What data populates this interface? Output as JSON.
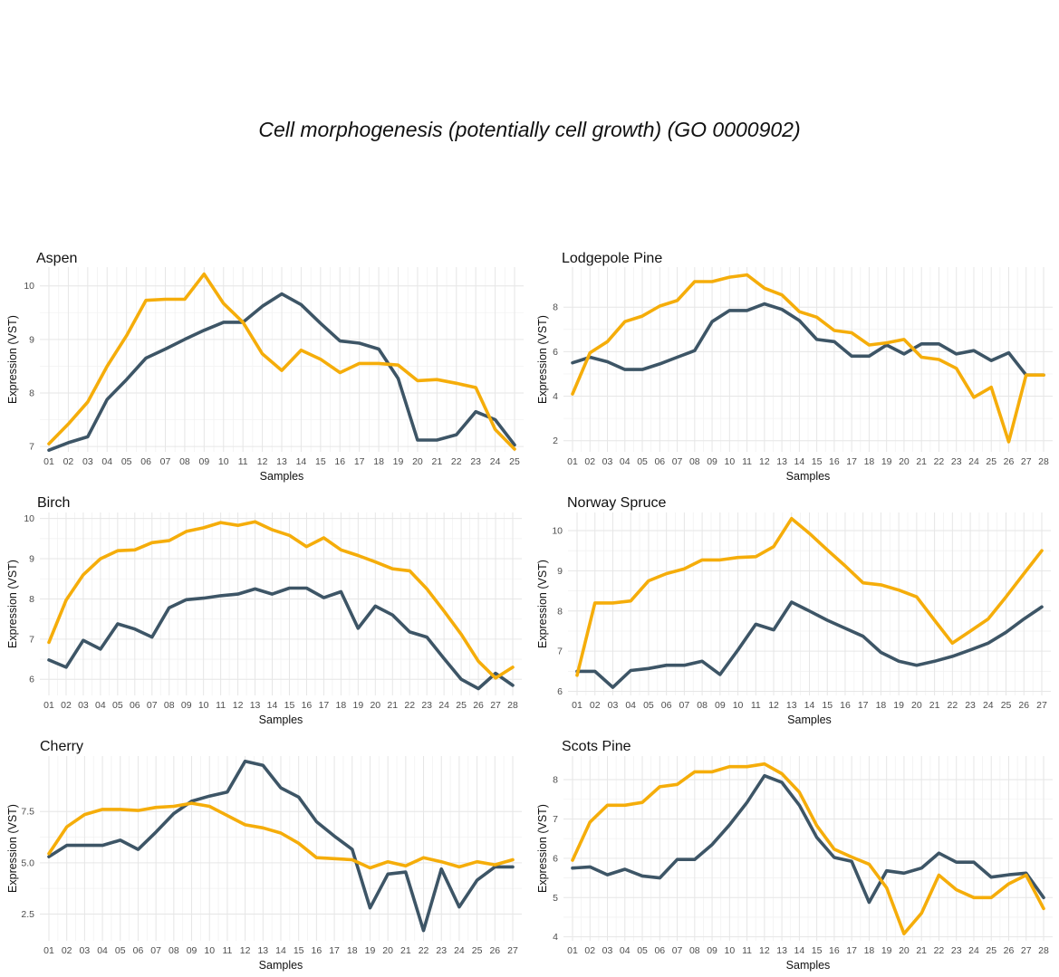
{
  "figure": {
    "title": "Cell morphogenesis (potentially cell growth) (GO 0000902)",
    "colors": {
      "series_dark": "#3d5566",
      "series_gold": "#f5ad0a"
    }
  },
  "chart_data": [
    {
      "type": "line",
      "title": "Aspen",
      "xlabel": "Samples",
      "ylabel": "Expression (VST)",
      "categories": [
        "01",
        "02",
        "03",
        "04",
        "05",
        "06",
        "07",
        "08",
        "09",
        "10",
        "11",
        "12",
        "13",
        "14",
        "15",
        "16",
        "17",
        "18",
        "19",
        "20",
        "21",
        "22",
        "23",
        "24",
        "25"
      ],
      "ylim": [
        6.9,
        10.35
      ],
      "yticks": [
        7,
        8,
        9,
        10
      ],
      "grid": true,
      "series": [
        {
          "color": "#3d5566",
          "values": [
            6.93,
            7.07,
            7.18,
            7.88,
            8.25,
            8.65,
            8.82,
            9.0,
            9.17,
            9.32,
            9.32,
            9.62,
            9.85,
            9.65,
            9.3,
            8.97,
            8.93,
            8.82,
            8.27,
            7.12,
            7.12,
            7.22,
            7.65,
            7.5,
            7.03
          ]
        },
        {
          "color": "#f5ad0a",
          "values": [
            7.05,
            7.42,
            7.83,
            8.5,
            9.07,
            9.73,
            9.75,
            9.75,
            10.22,
            9.67,
            9.32,
            8.73,
            8.42,
            8.8,
            8.63,
            8.38,
            8.55,
            8.55,
            8.52,
            8.23,
            8.25,
            8.18,
            8.1,
            7.32,
            6.95
          ]
        }
      ]
    },
    {
      "type": "line",
      "title": "Lodgepole Pine",
      "xlabel": "Samples",
      "ylabel": "Expression (VST)",
      "categories": [
        "01",
        "02",
        "03",
        "04",
        "05",
        "06",
        "07",
        "08",
        "09",
        "10",
        "11",
        "12",
        "13",
        "14",
        "15",
        "16",
        "17",
        "18",
        "19",
        "20",
        "21",
        "22",
        "23",
        "24",
        "25",
        "26",
        "27",
        "28"
      ],
      "ylim": [
        1.5,
        9.8
      ],
      "yticks": [
        2,
        4,
        6,
        8
      ],
      "grid": true,
      "series": [
        {
          "color": "#3d5566",
          "values": [
            5.5,
            5.75,
            5.55,
            5.2,
            5.2,
            5.45,
            5.75,
            6.05,
            7.35,
            7.85,
            7.85,
            8.15,
            7.9,
            7.4,
            6.55,
            6.45,
            5.8,
            5.8,
            6.3,
            5.9,
            6.35,
            6.35,
            5.9,
            6.05,
            5.6,
            5.95,
            4.95,
            4.95
          ]
        },
        {
          "color": "#f5ad0a",
          "values": [
            4.1,
            5.95,
            6.45,
            7.35,
            7.6,
            8.05,
            8.3,
            9.15,
            9.15,
            9.35,
            9.45,
            8.85,
            8.55,
            7.8,
            7.55,
            6.95,
            6.85,
            6.3,
            6.4,
            6.55,
            5.75,
            5.65,
            5.25,
            3.95,
            4.4,
            1.95,
            4.95,
            4.95
          ]
        }
      ]
    },
    {
      "type": "line",
      "title": "Birch",
      "xlabel": "Samples",
      "ylabel": "Expression (VST)",
      "categories": [
        "01",
        "02",
        "03",
        "04",
        "05",
        "06",
        "07",
        "08",
        "09",
        "10",
        "11",
        "12",
        "13",
        "14",
        "15",
        "16",
        "17",
        "18",
        "19",
        "20",
        "21",
        "22",
        "23",
        "24",
        "25",
        "26",
        "27",
        "28"
      ],
      "ylim": [
        5.6,
        10.15
      ],
      "yticks": [
        6,
        7,
        8,
        9,
        10
      ],
      "grid": true,
      "series": [
        {
          "color": "#3d5566",
          "values": [
            6.48,
            6.3,
            6.97,
            6.75,
            7.38,
            7.25,
            7.05,
            7.78,
            7.98,
            8.02,
            8.08,
            8.12,
            8.25,
            8.12,
            8.27,
            8.27,
            8.03,
            8.18,
            7.27,
            7.82,
            7.6,
            7.18,
            7.05,
            6.52,
            6.0,
            5.77,
            6.15,
            5.85
          ]
        },
        {
          "color": "#f5ad0a",
          "values": [
            6.92,
            7.97,
            8.6,
            9.0,
            9.2,
            9.22,
            9.4,
            9.45,
            9.68,
            9.77,
            9.9,
            9.83,
            9.92,
            9.72,
            9.58,
            9.3,
            9.52,
            9.22,
            9.08,
            8.92,
            8.75,
            8.7,
            8.25,
            7.7,
            7.12,
            6.45,
            6.03,
            6.3
          ]
        }
      ]
    },
    {
      "type": "line",
      "title": "Norway Spruce",
      "xlabel": "Samples",
      "ylabel": "Expression (VST)",
      "categories": [
        "01",
        "02",
        "03",
        "04",
        "05",
        "06",
        "07",
        "08",
        "09",
        "10",
        "11",
        "12",
        "13",
        "14",
        "15",
        "16",
        "17",
        "18",
        "19",
        "20",
        "21",
        "22",
        "23",
        "24",
        "25",
        "26",
        "27"
      ],
      "ylim": [
        5.9,
        10.45
      ],
      "yticks": [
        6,
        7,
        8,
        9,
        10
      ],
      "grid": true,
      "series": [
        {
          "color": "#3d5566",
          "values": [
            6.5,
            6.5,
            6.1,
            6.52,
            6.57,
            6.65,
            6.65,
            6.75,
            6.42,
            7.03,
            7.67,
            7.53,
            8.22,
            8.0,
            7.77,
            7.57,
            7.37,
            6.97,
            6.75,
            6.65,
            6.75,
            6.87,
            7.03,
            7.2,
            7.47,
            7.8,
            8.1
          ]
        },
        {
          "color": "#f5ad0a",
          "values": [
            6.4,
            8.2,
            8.2,
            8.25,
            8.75,
            8.93,
            9.05,
            9.27,
            9.27,
            9.33,
            9.35,
            9.6,
            10.3,
            9.93,
            9.52,
            9.12,
            8.7,
            8.65,
            8.52,
            8.35,
            7.77,
            7.2,
            7.5,
            7.8,
            8.35,
            8.93,
            9.5
          ]
        }
      ]
    },
    {
      "type": "line",
      "title": "Cherry",
      "xlabel": "Samples",
      "ylabel": "Expression (VST)",
      "categories": [
        "01",
        "02",
        "03",
        "04",
        "05",
        "06",
        "07",
        "08",
        "09",
        "10",
        "11",
        "12",
        "13",
        "14",
        "15",
        "16",
        "17",
        "18",
        "19",
        "20",
        "21",
        "22",
        "23",
        "24",
        "25",
        "26",
        "27"
      ],
      "ylim": [
        1.2,
        10.2
      ],
      "yticks": [
        2.5,
        5.0,
        7.5
      ],
      "ytick_labels": [
        "2.5",
        "5.0",
        "7.5"
      ],
      "grid": true,
      "series": [
        {
          "color": "#3d5566",
          "values": [
            5.3,
            5.85,
            5.85,
            5.85,
            6.1,
            5.65,
            6.5,
            7.4,
            8.0,
            8.25,
            8.45,
            9.95,
            9.75,
            8.65,
            8.2,
            7.0,
            6.3,
            5.65,
            2.8,
            4.45,
            4.55,
            1.7,
            4.7,
            2.85,
            4.15,
            4.8,
            4.8
          ]
        },
        {
          "color": "#f5ad0a",
          "values": [
            5.45,
            6.75,
            7.35,
            7.6,
            7.6,
            7.55,
            7.7,
            7.75,
            7.9,
            7.75,
            7.3,
            6.85,
            6.7,
            6.45,
            5.95,
            5.25,
            5.2,
            5.15,
            4.75,
            5.05,
            4.85,
            5.25,
            5.05,
            4.8,
            5.05,
            4.9,
            5.15
          ]
        }
      ]
    },
    {
      "type": "line",
      "title": "Scots Pine",
      "xlabel": "Samples",
      "ylabel": "Expression (VST)",
      "categories": [
        "01",
        "02",
        "03",
        "04",
        "05",
        "06",
        "07",
        "08",
        "09",
        "10",
        "11",
        "12",
        "13",
        "14",
        "15",
        "16",
        "17",
        "18",
        "19",
        "20",
        "21",
        "22",
        "23",
        "24",
        "25",
        "26",
        "27",
        "28"
      ],
      "ylim": [
        3.9,
        8.6
      ],
      "yticks": [
        4,
        5,
        6,
        7,
        8
      ],
      "grid": true,
      "series": [
        {
          "color": "#3d5566",
          "values": [
            5.75,
            5.78,
            5.58,
            5.72,
            5.55,
            5.5,
            5.97,
            5.97,
            6.35,
            6.85,
            7.42,
            8.1,
            7.93,
            7.35,
            6.53,
            6.02,
            5.92,
            4.88,
            5.68,
            5.62,
            5.75,
            6.13,
            5.9,
            5.9,
            5.52,
            5.58,
            5.62,
            5.0
          ]
        },
        {
          "color": "#f5ad0a",
          "values": [
            5.95,
            6.92,
            7.35,
            7.35,
            7.42,
            7.82,
            7.88,
            8.2,
            8.2,
            8.33,
            8.33,
            8.4,
            8.15,
            7.68,
            6.83,
            6.23,
            6.03,
            5.85,
            5.25,
            4.08,
            4.6,
            5.57,
            5.2,
            5.0,
            5.0,
            5.35,
            5.57,
            4.72
          ]
        }
      ]
    }
  ]
}
